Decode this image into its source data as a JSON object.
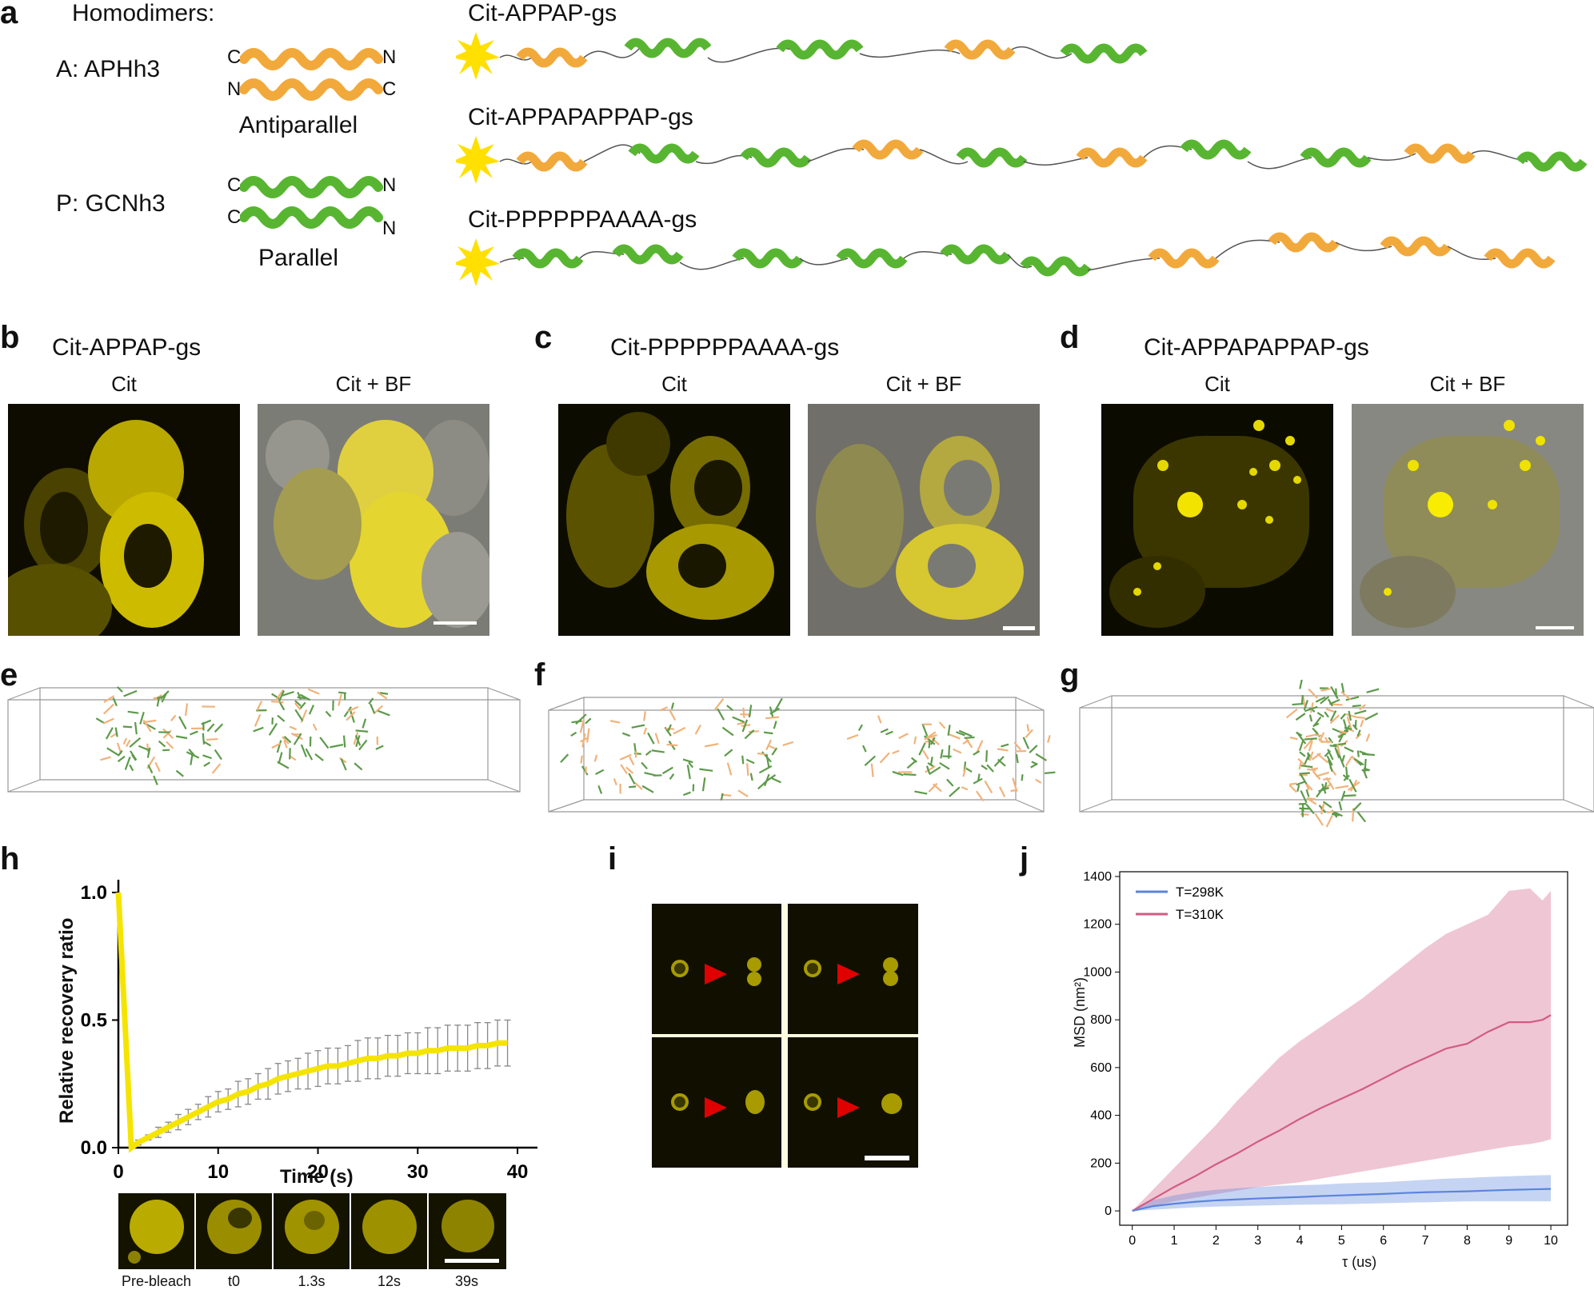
{
  "panel_labels": [
    "a",
    "b",
    "c",
    "d",
    "e",
    "f",
    "g",
    "h",
    "i",
    "j"
  ],
  "panel_a": {
    "homodimers_label": "Homodimers:",
    "A_label": "A: APHh3",
    "P_label": "P: GCNh3",
    "antiparallel": "Antiparallel",
    "parallel": "Parallel",
    "termini": {
      "C": "C",
      "N": "N"
    },
    "constructs": [
      "Cit-APPAP-gs",
      "Cit-APPAPAPPAP-gs",
      "Cit-PPPPPPAAAA-gs"
    ],
    "colors": {
      "A": "#f2a93b",
      "P": "#58b531",
      "cit": "#ffe000"
    }
  },
  "panel_b": {
    "title": "Cit-APPAP-gs",
    "left": "Cit",
    "right": "Cit + BF"
  },
  "panel_c": {
    "title": "Cit-PPPPPPAAAA-gs",
    "left": "Cit",
    "right": "Cit + BF"
  },
  "panel_d": {
    "title": "Cit-APPAPAPPAP-gs",
    "left": "Cit",
    "right": "Cit + BF"
  },
  "panel_h": {
    "xlabel": "Time (s)",
    "ylabel": "Relative recovery ratio",
    "frames": [
      "Pre-bleach",
      "t0",
      "1.3s",
      "12s",
      "39s"
    ],
    "chart_data": {
      "type": "line",
      "x": [
        0,
        1.3,
        2,
        3,
        4,
        5,
        6,
        7,
        8,
        9,
        10,
        11,
        12,
        13,
        14,
        15,
        16,
        17,
        18,
        19,
        20,
        21,
        22,
        23,
        24,
        25,
        26,
        27,
        28,
        29,
        30,
        31,
        32,
        33,
        34,
        35,
        36,
        37,
        38,
        39
      ],
      "y": [
        1.0,
        0.0,
        0.02,
        0.04,
        0.06,
        0.08,
        0.1,
        0.12,
        0.14,
        0.16,
        0.18,
        0.19,
        0.21,
        0.22,
        0.24,
        0.25,
        0.27,
        0.28,
        0.29,
        0.3,
        0.31,
        0.32,
        0.32,
        0.33,
        0.34,
        0.35,
        0.35,
        0.36,
        0.36,
        0.37,
        0.37,
        0.38,
        0.38,
        0.39,
        0.39,
        0.39,
        0.4,
        0.4,
        0.41,
        0.41
      ],
      "err": [
        0,
        0,
        0.01,
        0.01,
        0.02,
        0.02,
        0.03,
        0.03,
        0.03,
        0.04,
        0.04,
        0.04,
        0.05,
        0.05,
        0.05,
        0.06,
        0.06,
        0.06,
        0.06,
        0.07,
        0.07,
        0.07,
        0.07,
        0.07,
        0.08,
        0.08,
        0.08,
        0.08,
        0.08,
        0.08,
        0.08,
        0.09,
        0.09,
        0.09,
        0.09,
        0.09,
        0.09,
        0.09,
        0.09,
        0.09
      ],
      "xticks": [
        "0",
        "10",
        "20",
        "30",
        "40"
      ],
      "yticks": [
        "0.0",
        "0.5",
        "1.0"
      ],
      "xlim": [
        0,
        42
      ],
      "ylim": [
        0,
        1.05
      ],
      "color": "#f5e400"
    }
  },
  "panel_j": {
    "chart_data": {
      "type": "line",
      "xlabel": "τ (us)",
      "ylabel": "MSD (nm²)",
      "xticks": [
        "0",
        "1",
        "2",
        "3",
        "4",
        "5",
        "6",
        "7",
        "8",
        "9",
        "10"
      ],
      "yticks": [
        "0",
        "200",
        "400",
        "600",
        "800",
        "1000",
        "1200",
        "1400"
      ],
      "xlim": [
        -0.3,
        10.4
      ],
      "ylim": [
        -60,
        1420
      ],
      "series": [
        {
          "name": "T=298K",
          "color": "#5b84de",
          "x": [
            0,
            0.5,
            1,
            1.5,
            2,
            2.5,
            3,
            3.5,
            4,
            4.5,
            5,
            5.5,
            6,
            6.5,
            7,
            7.5,
            8,
            8.5,
            9,
            9.5,
            10
          ],
          "y": [
            0,
            20,
            30,
            38,
            44,
            48,
            52,
            55,
            58,
            62,
            65,
            68,
            71,
            75,
            78,
            80,
            82,
            85,
            88,
            90,
            92
          ],
          "lo": [
            0,
            5,
            10,
            15,
            18,
            20,
            22,
            24,
            26,
            27,
            28,
            30,
            32,
            34,
            36,
            38,
            40,
            40,
            40,
            40,
            40
          ],
          "hi": [
            0,
            45,
            65,
            80,
            88,
            95,
            100,
            105,
            108,
            110,
            115,
            118,
            120,
            125,
            130,
            135,
            138,
            142,
            145,
            148,
            150
          ]
        },
        {
          "name": "T=310K",
          "color": "#d25b84",
          "x": [
            0,
            0.5,
            1,
            1.5,
            2,
            2.5,
            3,
            3.5,
            4,
            4.5,
            5,
            5.5,
            6,
            6.5,
            7,
            7.5,
            8,
            8.5,
            9,
            9.5,
            9.8,
            10
          ],
          "y": [
            0,
            50,
            100,
            145,
            195,
            240,
            290,
            335,
            385,
            430,
            470,
            510,
            555,
            600,
            640,
            680,
            700,
            750,
            790,
            790,
            800,
            820
          ],
          "lo": [
            0,
            20,
            40,
            55,
            70,
            85,
            100,
            110,
            120,
            135,
            150,
            165,
            180,
            195,
            210,
            225,
            240,
            255,
            270,
            280,
            290,
            300
          ],
          "hi": [
            0,
            90,
            180,
            270,
            360,
            460,
            550,
            640,
            710,
            770,
            830,
            890,
            960,
            1030,
            1100,
            1160,
            1200,
            1240,
            1340,
            1350,
            1300,
            1340
          ]
        }
      ]
    }
  }
}
